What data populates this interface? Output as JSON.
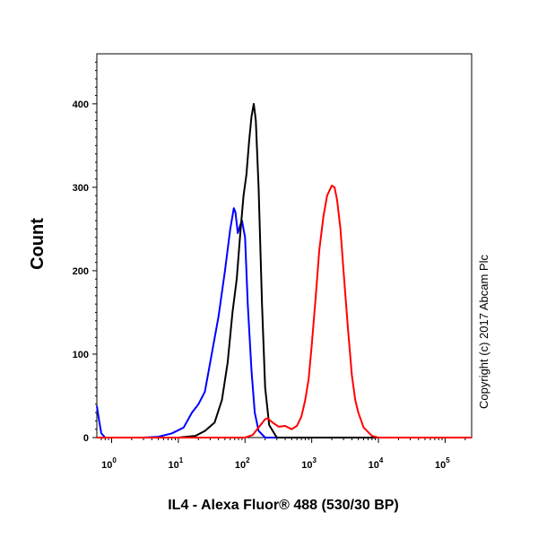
{
  "chart_data": {
    "type": "line",
    "xlabel": "IL4 - Alexa Fluor® 488 (530/30 BP)",
    "ylabel": "Count",
    "xscale": "log",
    "xlim": [
      0.6,
      250000
    ],
    "ylim": [
      0,
      460
    ],
    "x_ticks": [
      {
        "value": 1,
        "base": "10",
        "exp": "0"
      },
      {
        "value": 10,
        "base": "10",
        "exp": "1"
      },
      {
        "value": 100,
        "base": "10",
        "exp": "2"
      },
      {
        "value": 1000,
        "base": "10",
        "exp": "3"
      },
      {
        "value": 10000,
        "base": "10",
        "exp": "4"
      },
      {
        "value": 100000,
        "base": "10",
        "exp": "5"
      }
    ],
    "y_ticks": [
      0,
      100,
      200,
      300,
      400
    ],
    "grid": false,
    "legend": "none",
    "series": [
      {
        "color": "#0000ff",
        "points": [
          [
            0.6,
            38
          ],
          [
            0.65,
            20
          ],
          [
            0.7,
            5
          ],
          [
            0.8,
            0
          ],
          [
            3,
            0
          ],
          [
            5,
            1
          ],
          [
            8,
            5
          ],
          [
            12,
            12
          ],
          [
            16,
            30
          ],
          [
            20,
            40
          ],
          [
            25,
            55
          ],
          [
            30,
            90
          ],
          [
            40,
            145
          ],
          [
            50,
            200
          ],
          [
            60,
            250
          ],
          [
            68,
            275
          ],
          [
            72,
            270
          ],
          [
            78,
            245
          ],
          [
            85,
            255
          ],
          [
            90,
            260
          ],
          [
            100,
            240
          ],
          [
            110,
            160
          ],
          [
            125,
            80
          ],
          [
            140,
            30
          ],
          [
            160,
            8
          ],
          [
            200,
            0
          ],
          [
            250000,
            0
          ]
        ]
      },
      {
        "color": "#000000",
        "points": [
          [
            0.6,
            0
          ],
          [
            10,
            0
          ],
          [
            18,
            2
          ],
          [
            25,
            8
          ],
          [
            35,
            18
          ],
          [
            45,
            45
          ],
          [
            55,
            90
          ],
          [
            65,
            150
          ],
          [
            75,
            190
          ],
          [
            85,
            245
          ],
          [
            95,
            290
          ],
          [
            105,
            315
          ],
          [
            115,
            355
          ],
          [
            125,
            385
          ],
          [
            135,
            400
          ],
          [
            145,
            380
          ],
          [
            160,
            300
          ],
          [
            180,
            160
          ],
          [
            200,
            60
          ],
          [
            230,
            15
          ],
          [
            300,
            0
          ],
          [
            250000,
            0
          ]
        ]
      },
      {
        "color": "#ff0000",
        "points": [
          [
            0.6,
            0
          ],
          [
            100,
            0
          ],
          [
            130,
            3
          ],
          [
            160,
            12
          ],
          [
            200,
            22
          ],
          [
            220,
            23
          ],
          [
            260,
            18
          ],
          [
            320,
            13
          ],
          [
            400,
            14
          ],
          [
            500,
            10
          ],
          [
            600,
            14
          ],
          [
            700,
            25
          ],
          [
            800,
            45
          ],
          [
            900,
            70
          ],
          [
            1000,
            110
          ],
          [
            1150,
            170
          ],
          [
            1300,
            225
          ],
          [
            1500,
            265
          ],
          [
            1700,
            290
          ],
          [
            2000,
            302
          ],
          [
            2200,
            300
          ],
          [
            2400,
            285
          ],
          [
            2700,
            250
          ],
          [
            3000,
            200
          ],
          [
            3500,
            130
          ],
          [
            4000,
            75
          ],
          [
            4500,
            45
          ],
          [
            5000,
            30
          ],
          [
            6000,
            12
          ],
          [
            8000,
            2
          ],
          [
            10000,
            0
          ],
          [
            250000,
            0
          ]
        ]
      }
    ]
  },
  "watermark": "Copyright (c) 2017 Abcam Plc"
}
